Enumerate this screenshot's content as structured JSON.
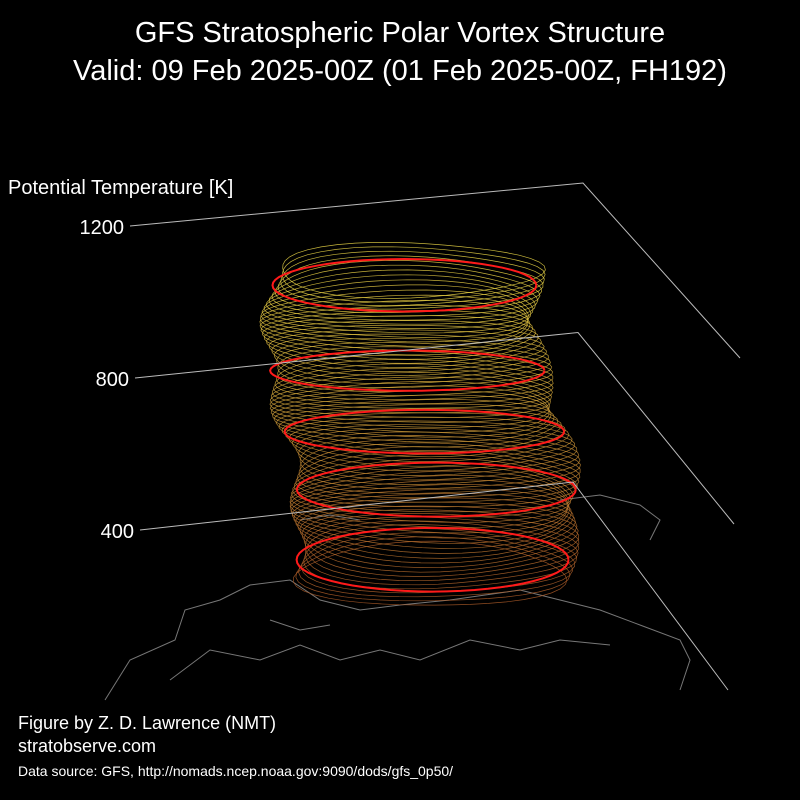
{
  "chart_data": {
    "type": "surface",
    "title": [
      "GFS Stratospheric Polar Vortex Structure",
      "Valid: 09 Feb 2025-00Z  (01 Feb 2025-00Z, FH192)"
    ],
    "zlabel": "Potential Temperature [K]",
    "zlim": [
      400,
      1200
    ],
    "zticks": [
      400,
      800,
      1200
    ],
    "credits": [
      "Figure by Z. D. Lawrence (NMT)",
      "stratobserve.com",
      "Data source: GFS, http://nomads.ncep.noaa.gov:9090/dods/gfs_0p50/"
    ]
  }
}
